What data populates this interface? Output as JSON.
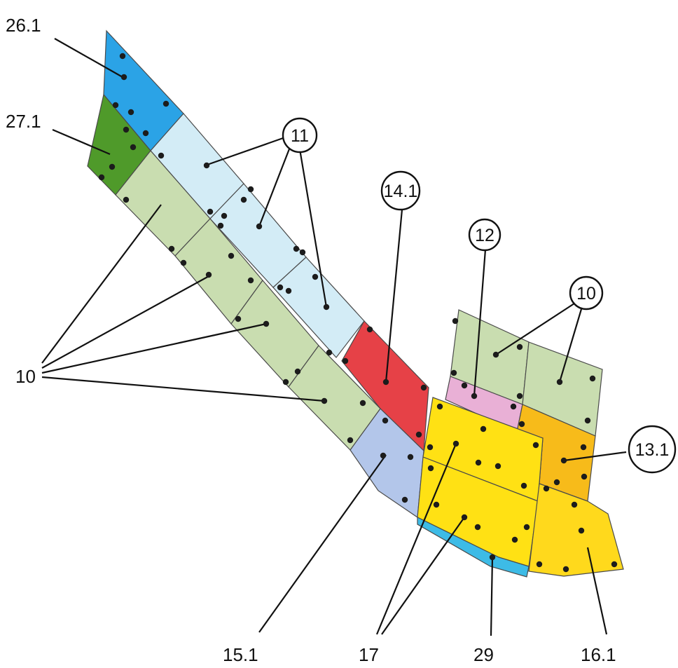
{
  "colors": {
    "blue_26": "#2ba3e6",
    "green_27": "#4f9a2a",
    "pale_blue_11": "#d3ecf6",
    "sage_10": "#c9ddb0",
    "red_14": "#e64147",
    "lavender_15": "#b3c6ea",
    "pink_12": "#e9b0d6",
    "orange_13": "#f7bb1a",
    "yellow_17": "#ffe114",
    "yellow_16": "#ffd91c",
    "cyan_29": "#3dbbe6"
  },
  "labels": {
    "p26": "26.1",
    "p27": "27.1",
    "p11": "11",
    "p14": "14.1",
    "p12": "12",
    "p10_right": "10",
    "p13": "13.1",
    "p10_left": "10",
    "p15": "15.1",
    "p17": "17",
    "p29": "29",
    "p16": "16.1"
  }
}
